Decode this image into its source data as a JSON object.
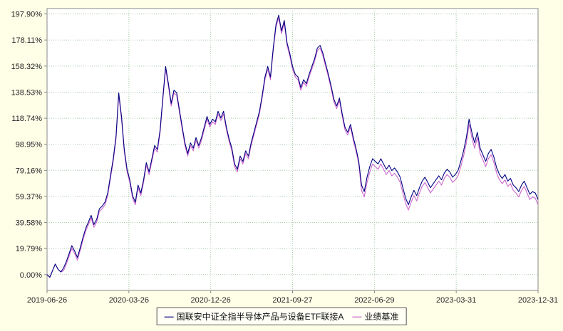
{
  "page": {
    "background_color": "#ffffe8"
  },
  "legend": {
    "items": [
      {
        "label": "国联安中证全指半导体产品与设备ETF联接A",
        "marker": "—",
        "color": "#000080"
      },
      {
        "label": "业绩基准",
        "marker": "—",
        "color": "#cc66cc"
      }
    ]
  },
  "chart_data": {
    "type": "line",
    "title": "",
    "xlabel": "",
    "ylabel": "",
    "x_range": [
      "2019-06-26",
      "2023-12-31"
    ],
    "x_tick_labels": [
      "2019-06-26",
      "2020-03-26",
      "2020-12-26",
      "2021-09-27",
      "2022-06-29",
      "2023-03-31",
      "2023-12-31"
    ],
    "y_tick_labels": [
      "197.90%",
      "178.11%",
      "158.32%",
      "138.53%",
      "118.74%",
      "98.95%",
      "79.16%",
      "59.37%",
      "39.58%",
      "19.79%",
      "0.00%"
    ],
    "y_tick_values": [
      197.9,
      178.11,
      158.32,
      138.53,
      118.74,
      98.95,
      79.16,
      59.37,
      39.58,
      19.79,
      0.0
    ],
    "ylim": [
      -12,
      202
    ],
    "grid": true,
    "grid_color": "#aaccaa",
    "plot_bg": "#ffffff",
    "axis_color": "#888888",
    "legend_position": "bottom-center",
    "series": [
      {
        "name": "国联安中证全指半导体产品与设备ETF联接A",
        "color": "#000080",
        "unit": "%",
        "values": [
          0,
          -2,
          3,
          8,
          4,
          2,
          5,
          10,
          16,
          22,
          18,
          13,
          20,
          28,
          35,
          40,
          45,
          38,
          42,
          50,
          52,
          55,
          62,
          75,
          88,
          105,
          138,
          120,
          95,
          80,
          72,
          60,
          55,
          68,
          62,
          72,
          85,
          78,
          88,
          98,
          95,
          110,
          135,
          158,
          145,
          130,
          140,
          138,
          125,
          112,
          100,
          92,
          100,
          96,
          104,
          98,
          104,
          112,
          120,
          114,
          118,
          116,
          124,
          119,
          124,
          112,
          103,
          96,
          84,
          80,
          90,
          86,
          94,
          90,
          100,
          108,
          116,
          124,
          136,
          150,
          158,
          150,
          172,
          190,
          197,
          185,
          193,
          176,
          168,
          158,
          152,
          150,
          142,
          148,
          145,
          152,
          158,
          164,
          172,
          174,
          168,
          160,
          152,
          143,
          133,
          128,
          134,
          122,
          112,
          108,
          114,
          104,
          96,
          86,
          68,
          63,
          74,
          82,
          88,
          86,
          84,
          88,
          84,
          80,
          83,
          79,
          81,
          78,
          74,
          66,
          58,
          53,
          59,
          64,
          60,
          66,
          71,
          74,
          70,
          66,
          69,
          72,
          75,
          72,
          77,
          80,
          78,
          74,
          76,
          79,
          86,
          94,
          104,
          118,
          108,
          100,
          108,
          96,
          91,
          86,
          92,
          95,
          89,
          81,
          76,
          73,
          76,
          71,
          73,
          68,
          66,
          63,
          68,
          71,
          66,
          61,
          63,
          62,
          57
        ]
      },
      {
        "name": "业绩基准",
        "color": "#cc66cc",
        "unit": "%",
        "values": [
          0,
          -2,
          3,
          8,
          4,
          2,
          3,
          8,
          14,
          20,
          16,
          11,
          18,
          26,
          33,
          38,
          43,
          36,
          40,
          48,
          50,
          53,
          60,
          73,
          86,
          103,
          136,
          118,
          93,
          78,
          70,
          58,
          53,
          66,
          60,
          70,
          83,
          76,
          86,
          96,
          93,
          108,
          133,
          156,
          143,
          128,
          138,
          136,
          123,
          110,
          98,
          90,
          98,
          94,
          102,
          96,
          102,
          110,
          118,
          112,
          116,
          114,
          122,
          117,
          122,
          110,
          101,
          94,
          82,
          78,
          88,
          84,
          92,
          88,
          98,
          106,
          114,
          122,
          134,
          148,
          156,
          148,
          170,
          188,
          195,
          183,
          191,
          174,
          166,
          156,
          150,
          148,
          140,
          146,
          143,
          150,
          156,
          162,
          170,
          172,
          166,
          158,
          150,
          141,
          131,
          126,
          132,
          120,
          110,
          106,
          112,
          102,
          94,
          84,
          64,
          59,
          70,
          78,
          84,
          82,
          80,
          84,
          80,
          76,
          79,
          75,
          77,
          74,
          70,
          62,
          54,
          49,
          55,
          60,
          56,
          62,
          67,
          70,
          66,
          62,
          65,
          68,
          71,
          68,
          73,
          76,
          74,
          70,
          72,
          75,
          82,
          90,
          100,
          114,
          104,
          96,
          104,
          92,
          87,
          82,
          88,
          91,
          85,
          77,
          72,
          69,
          72,
          67,
          69,
          64,
          62,
          59,
          64,
          67,
          62,
          57,
          59,
          58,
          53
        ]
      }
    ]
  }
}
